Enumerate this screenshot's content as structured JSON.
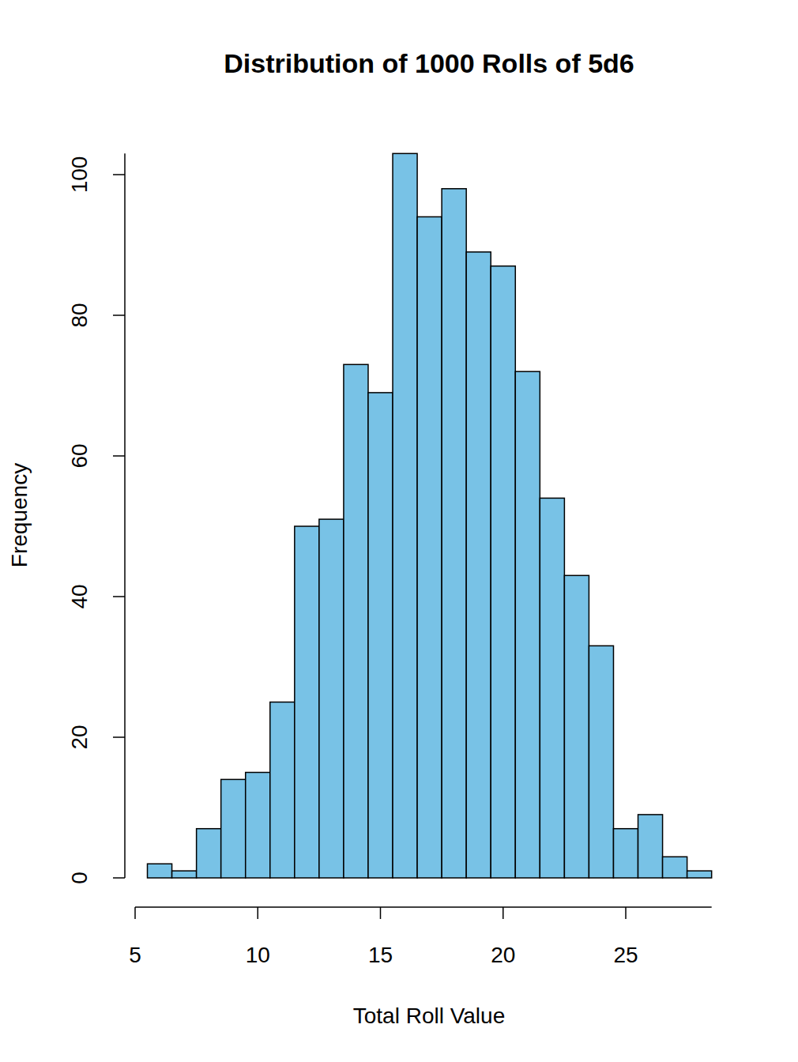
{
  "chart_data": {
    "type": "histogram",
    "title": "Distribution of 1000 Rolls of 5d6",
    "x_label": "Total Roll Value",
    "y_label": "Frequency",
    "bins": [
      5.5,
      6.5,
      7.5,
      8.5,
      9.5,
      10.5,
      11.5,
      12.5,
      13.5,
      14.5,
      15.5,
      16.5,
      17.5,
      18.5,
      19.5,
      20.5,
      21.5,
      22.5,
      23.5,
      24.5,
      25.5,
      26.5,
      27.5,
      28.5
    ],
    "values": [
      2,
      1,
      7,
      14,
      15,
      25,
      50,
      51,
      73,
      69,
      103,
      94,
      98,
      89,
      87,
      72,
      54,
      43,
      33,
      7,
      9,
      3,
      1
    ],
    "color": "#78c2e6",
    "xlim": [
      5,
      28.5
    ],
    "xticks": [
      5,
      10,
      15,
      20,
      25
    ],
    "ylim": [
      0,
      103
    ],
    "yticks": [
      0,
      20,
      40,
      60,
      80,
      100
    ],
    "grid": false
  }
}
